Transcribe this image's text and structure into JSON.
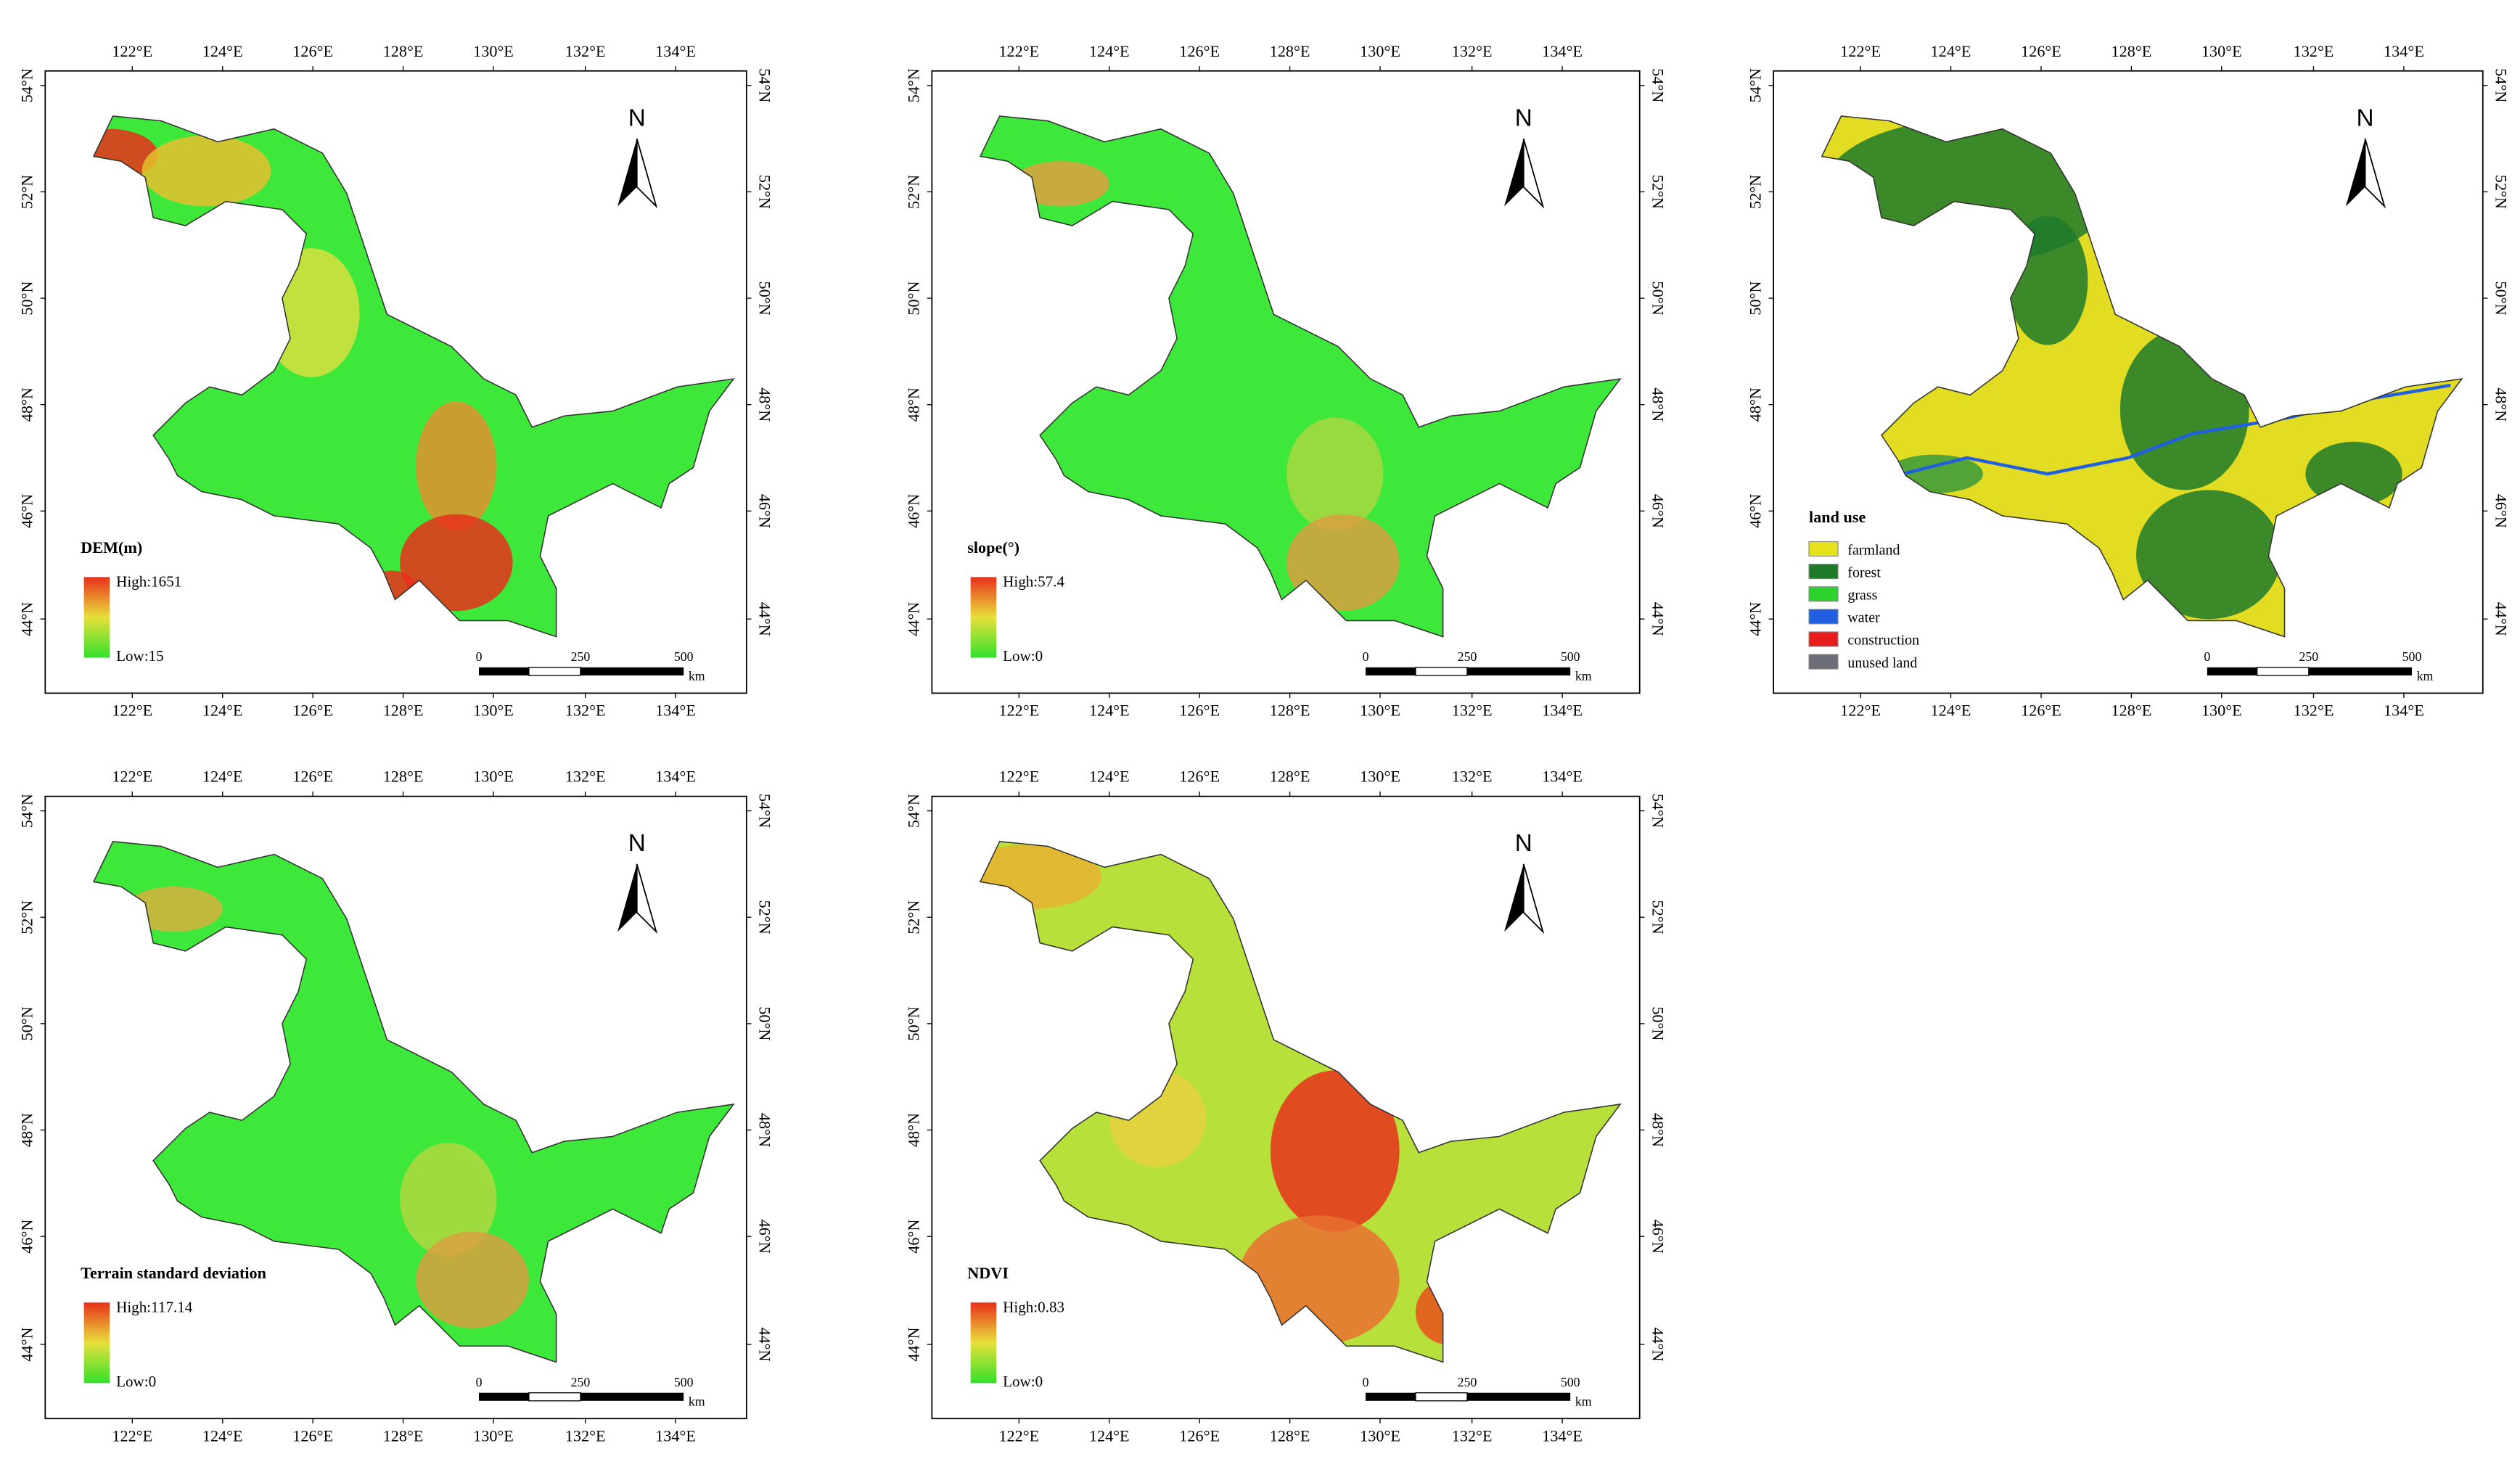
{
  "axes": {
    "lon_labels": [
      "122°E",
      "124°E",
      "126°E",
      "128°E",
      "130°E",
      "132°E",
      "134°E"
    ],
    "lat_labels": [
      "54°N",
      "52°N",
      "50°N",
      "48°N",
      "46°N",
      "44°N"
    ]
  },
  "north": "N",
  "scale_bar": {
    "labels": [
      "0",
      "250",
      "500"
    ],
    "unit": "km"
  },
  "panels": [
    {
      "legend_title": "DEM(m)",
      "high": "High:1651",
      "low": "Low:15"
    },
    {
      "legend_title": "slope(°)",
      "high": "High:57.4",
      "low": "Low:0"
    },
    {
      "legend_title": "land use",
      "classes": [
        {
          "name": "farmland",
          "color": "#e6e21c"
        },
        {
          "name": "forest",
          "color": "#1e7a2a"
        },
        {
          "name": "grass",
          "color": "#2fd12f"
        },
        {
          "name": "water",
          "color": "#1f5fe0"
        },
        {
          "name": "construction",
          "color": "#e81c1c"
        },
        {
          "name": "unused land",
          "color": "#6e6e78"
        }
      ]
    },
    {
      "legend_title": "Terrain standard deviation",
      "high": "High:117.14",
      "low": "Low:0"
    },
    {
      "legend_title": "NDVI",
      "high": "High:0.83",
      "low": "Low:0"
    }
  ]
}
